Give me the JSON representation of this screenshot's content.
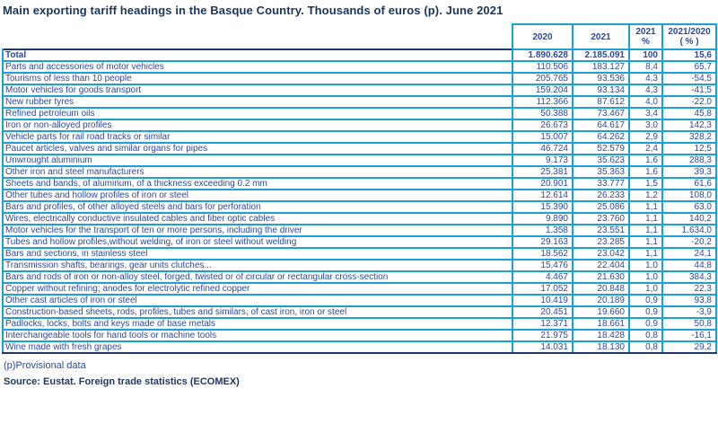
{
  "title": "Main exporting tariff headings in the Basque Country. Thousands of euros (p).  June 2021",
  "table": {
    "header": {
      "col_2020": "2020",
      "col_2021": "2021",
      "col_pct": {
        "line1": "2021",
        "line2": "%"
      },
      "col_yoy": {
        "line1": "2021/2020",
        "line2": "( % )"
      }
    },
    "rows": [
      {
        "label": "Total",
        "y2020": "1.890.628",
        "y2021": "2.185.091",
        "pct": "100",
        "yoy": "15,6",
        "bold": true
      },
      {
        "label": "Parts and accessories of motor vehicles",
        "y2020": "110.506",
        "y2021": "183.127",
        "pct": "8,4",
        "yoy": "65,7"
      },
      {
        "label": "Tourisms of less than 10 people",
        "y2020": "205.765",
        "y2021": "93.536",
        "pct": "4,3",
        "yoy": "-54,5"
      },
      {
        "label": "Motor vehicles for goods transport",
        "y2020": "159.204",
        "y2021": "93.134",
        "pct": "4,3",
        "yoy": "-41,5"
      },
      {
        "label": "New rubber tyres",
        "y2020": "112.366",
        "y2021": "87.612",
        "pct": "4,0",
        "yoy": "-22,0"
      },
      {
        "label": "Refined petroleum oils",
        "y2020": "50.388",
        "y2021": "73.467",
        "pct": "3,4",
        "yoy": "45,8"
      },
      {
        "label": "Iron or non-alloyed profiles",
        "y2020": "26.673",
        "y2021": "64.617",
        "pct": "3,0",
        "yoy": "142,3"
      },
      {
        "label": "Vehicle parts for rail road tracks or similar",
        "y2020": "15.007",
        "y2021": "64.262",
        "pct": "2,9",
        "yoy": "328,2"
      },
      {
        "label": "Paucet articles, valves and similar organs for pipes",
        "y2020": "46.724",
        "y2021": "52.579",
        "pct": "2,4",
        "yoy": "12,5"
      },
      {
        "label": "Unwrought aluminium",
        "y2020": "9.173",
        "y2021": "35.623",
        "pct": "1,6",
        "yoy": "288,3"
      },
      {
        "label": "Other iron and steel manufacturers",
        "y2020": "25.381",
        "y2021": "35.363",
        "pct": "1,6",
        "yoy": "39,3"
      },
      {
        "label": "Sheets and bands, of aluminum, of a thickness exceeding 0.2 mm",
        "y2020": "20.901",
        "y2021": "33.777",
        "pct": "1,5",
        "yoy": "61,6"
      },
      {
        "label": "Other tubes and hollow profiles of iron or steel",
        "y2020": "12.614",
        "y2021": "26.233",
        "pct": "1,2",
        "yoy": "108,0"
      },
      {
        "label": "Bars and profiles, of other alloyed steels and bars for perforation",
        "y2020": "15.390",
        "y2021": "25.086",
        "pct": "1,1",
        "yoy": "63,0"
      },
      {
        "label": "Wires, electrically conductive insulated cables and fiber optic cables",
        "y2020": "9.890",
        "y2021": "23.760",
        "pct": "1,1",
        "yoy": "140,2"
      },
      {
        "label": "Motor vehicles for the transport of ten or more persons, including the driver",
        "y2020": "1.358",
        "y2021": "23.551",
        "pct": "1,1",
        "yoy": "1.634,0"
      },
      {
        "label": "Tubes and hollow profiles,without welding, of iron or steel without welding",
        "y2020": "29.163",
        "y2021": "23.285",
        "pct": "1,1",
        "yoy": "-20,2"
      },
      {
        "label": "Bars and sections, in stainless steel",
        "y2020": "18.562",
        "y2021": "23.042",
        "pct": "1,1",
        "yoy": "24,1"
      },
      {
        "label": "Transmission shafts, bearings, gear units clutches...",
        "y2020": "15.476",
        "y2021": "22.404",
        "pct": "1,0",
        "yoy": "44,8"
      },
      {
        "label": "Bars and rods of iron or non-alloy steel, forged, twisted or of circular or rectangular cross-section",
        "y2020": "4.467",
        "y2021": "21.630",
        "pct": "1,0",
        "yoy": "384,3"
      },
      {
        "label": "Copper without refining; anodes for electrolytic refined copper",
        "y2020": "17.052",
        "y2021": "20.848",
        "pct": "1,0",
        "yoy": "22,3"
      },
      {
        "label": "Other cast articles of iron or steel",
        "y2020": "10.419",
        "y2021": "20.189",
        "pct": "0,9",
        "yoy": "93,8"
      },
      {
        "label": "Construction-based sheets, rods, profiles, tubes and similars, of cast iron, iron or steel",
        "y2020": "20.451",
        "y2021": "19.660",
        "pct": "0,9",
        "yoy": "-3,9",
        "rule_above": true
      },
      {
        "label": "Padlocks, locks, bolts and keys made of base metals",
        "y2020": "12.371",
        "y2021": "18.661",
        "pct": "0,9",
        "yoy": "50,8"
      },
      {
        "label": "Interchangeable tools for hand tools or machine tools",
        "y2020": "21.975",
        "y2021": "18.428",
        "pct": "0,8",
        "yoy": "-16,1"
      },
      {
        "label": "Wine made with fresh grapes",
        "y2020": "14.031",
        "y2021": "18.130",
        "pct": "0,8",
        "yoy": "29,2"
      }
    ]
  },
  "footnote": "(p)Provisional data",
  "source": "Source: Eustat. Foreign trade statistics (ECOMEX)",
  "colors": {
    "grid_cyan": "#1ba0d9",
    "rule_navy": "#1f3864",
    "text_blue": "#2b4a9d",
    "title_navy": "#17365d"
  }
}
